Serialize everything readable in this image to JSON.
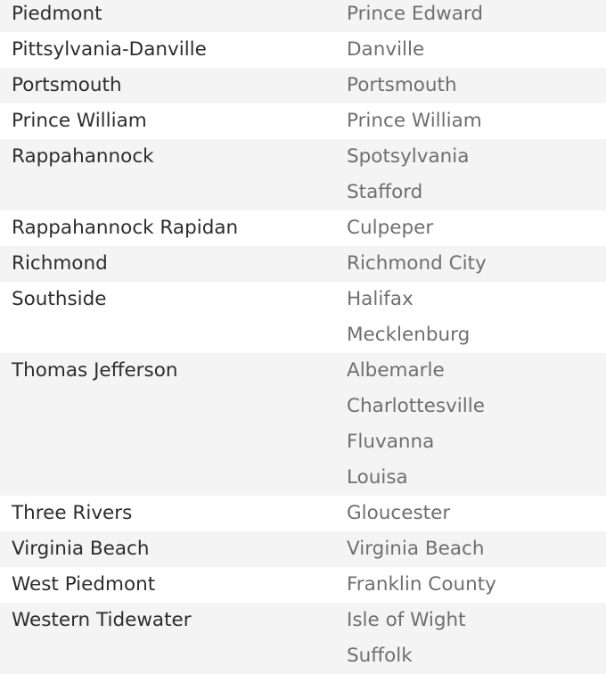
{
  "colors": {
    "row_shaded": "#f4f4f4",
    "row_plain": "#ffffff",
    "district_text": "#2d2d2d",
    "locality_text": "#6f6f6f"
  },
  "rows": [
    {
      "district": "Piedmont",
      "localities": [
        "Prince Edward"
      ]
    },
    {
      "district": "Pittsylvania-Danville",
      "localities": [
        "Danville"
      ]
    },
    {
      "district": "Portsmouth",
      "localities": [
        "Portsmouth"
      ]
    },
    {
      "district": "Prince William",
      "localities": [
        "Prince William"
      ]
    },
    {
      "district": "Rappahannock",
      "localities": [
        "Spotsylvania",
        "Stafford"
      ]
    },
    {
      "district": "Rappahannock Rapidan",
      "localities": [
        "Culpeper"
      ]
    },
    {
      "district": "Richmond",
      "localities": [
        "Richmond City"
      ]
    },
    {
      "district": "Southside",
      "localities": [
        "Halifax",
        "Mecklenburg"
      ]
    },
    {
      "district": "Thomas Jefferson",
      "localities": [
        "Albemarle",
        "Charlottesville",
        "Fluvanna",
        "Louisa"
      ]
    },
    {
      "district": "Three Rivers",
      "localities": [
        "Gloucester"
      ]
    },
    {
      "district": "Virginia Beach",
      "localities": [
        "Virginia Beach"
      ]
    },
    {
      "district": "West Piedmont",
      "localities": [
        "Franklin County"
      ]
    },
    {
      "district": "Western Tidewater",
      "localities": [
        "Isle of Wight",
        "Suffolk"
      ]
    }
  ]
}
